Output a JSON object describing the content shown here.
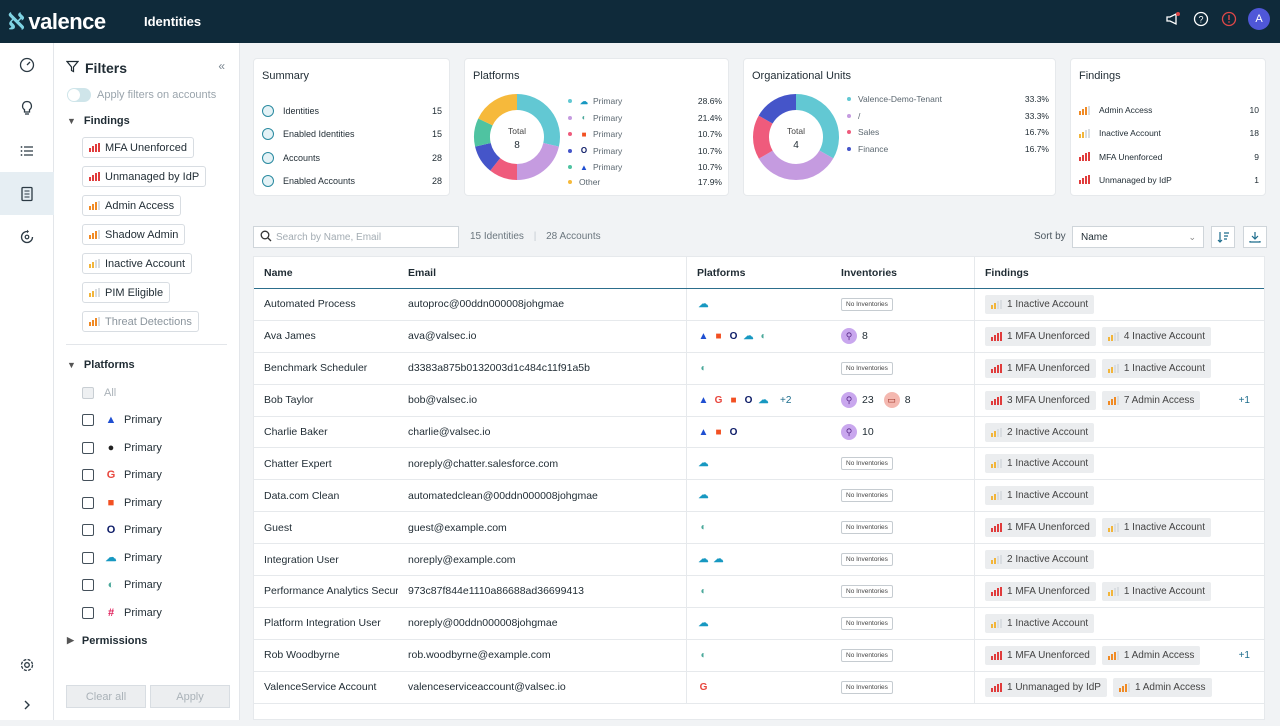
{
  "app": {
    "brand": "valence",
    "page_title": "Identities",
    "user_initial": "A"
  },
  "top_icons": [
    "megaphone-icon",
    "help-icon",
    "alert-icon"
  ],
  "rail": [
    "dashboard-icon",
    "lightbulb-icon",
    "list-icon",
    "identities-icon",
    "sync-icon",
    "settings-icon",
    "expand-icon"
  ],
  "filters": {
    "title": "Filters",
    "apply_toggle": "Apply filters on accounts",
    "findings_title": "Findings",
    "findings": [
      {
        "label": "MFA Unenforced",
        "color": "#e03b3b",
        "level": 4
      },
      {
        "label": "Unmanaged by IdP",
        "color": "#e03b3b",
        "level": 4
      },
      {
        "label": "Admin Access",
        "color": "#f08a24",
        "level": 3
      },
      {
        "label": "Shadow Admin",
        "color": "#f08a24",
        "level": 3
      },
      {
        "label": "Inactive Account",
        "color": "#f2b53a",
        "level": 2
      },
      {
        "label": "PIM Eligible",
        "color": "#f2b53a",
        "level": 2
      },
      {
        "label": "Threat Detections",
        "color": "#f08a24",
        "level": 3
      }
    ],
    "platforms_title": "Platforms",
    "all_label": "All",
    "platforms": [
      {
        "label": "Primary",
        "icon": "atlassian-icon",
        "glyph": "▲",
        "color": "#1f4fd1"
      },
      {
        "label": "Primary",
        "icon": "github-icon",
        "glyph": "●",
        "color": "#222"
      },
      {
        "label": "Primary",
        "icon": "google-icon",
        "glyph": "G",
        "color": "#e8453c"
      },
      {
        "label": "Primary",
        "icon": "microsoft-icon",
        "glyph": "■",
        "color": "#f25022"
      },
      {
        "label": "Primary",
        "icon": "okta-icon",
        "glyph": "O",
        "color": "#0b1a66"
      },
      {
        "label": "Primary",
        "icon": "salesforce-icon",
        "glyph": "☁",
        "color": "#1798c1"
      },
      {
        "label": "Primary",
        "icon": "onelogin-icon",
        "glyph": "◐",
        "color": "#4aa89a"
      },
      {
        "label": "Primary",
        "icon": "slack-icon",
        "glyph": "#",
        "color": "#e01e5a"
      }
    ],
    "permissions_title": "Permissions",
    "clear_label": "Clear all",
    "apply_label": "Apply"
  },
  "summary": {
    "title": "Summary",
    "rows": [
      {
        "label": "Identities",
        "value": "15"
      },
      {
        "label": "Enabled Identities",
        "value": "15"
      },
      {
        "label": "Accounts",
        "value": "28"
      },
      {
        "label": "Enabled Accounts",
        "value": "28"
      }
    ]
  },
  "platforms_card": {
    "title": "Platforms",
    "total_label": "Total",
    "total": "8",
    "legend": [
      {
        "label": "Primary",
        "pct": "28.6%",
        "value": 28.6,
        "color": "#62c8d3"
      },
      {
        "label": "Primary",
        "pct": "21.4%",
        "value": 21.4,
        "color": "#c59be0"
      },
      {
        "label": "Primary",
        "pct": "10.7%",
        "value": 10.7,
        "color": "#ef5b7c"
      },
      {
        "label": "Primary",
        "pct": "10.7%",
        "value": 10.7,
        "color": "#4555c9"
      },
      {
        "label": "Primary",
        "pct": "10.7%",
        "value": 10.7,
        "color": "#4fc3a1"
      },
      {
        "label": "Other",
        "pct": "17.9%",
        "value": 17.9,
        "color": "#f6b93b"
      }
    ]
  },
  "org_units": {
    "title": "Organizational Units",
    "total_label": "Total",
    "total": "4",
    "legend": [
      {
        "label": "Valence-Demo-Tenant",
        "pct": "33.3%",
        "value": 33.3,
        "color": "#62c8d3"
      },
      {
        "label": "/",
        "pct": "33.3%",
        "value": 33.3,
        "color": "#c59be0"
      },
      {
        "label": "Sales",
        "pct": "16.7%",
        "value": 16.7,
        "color": "#ef5b7c"
      },
      {
        "label": "Finance",
        "pct": "16.7%",
        "value": 16.7,
        "color": "#4555c9"
      }
    ]
  },
  "findings_card": {
    "title": "Findings",
    "rows": [
      {
        "label": "Admin Access",
        "value": "10",
        "color": "#f08a24",
        "level": 3
      },
      {
        "label": "Inactive Account",
        "value": "18",
        "color": "#f2b53a",
        "level": 2
      },
      {
        "label": "MFA Unenforced",
        "value": "9",
        "color": "#e03b3b",
        "level": 4
      },
      {
        "label": "Unmanaged by IdP",
        "value": "1",
        "color": "#e03b3b",
        "level": 4
      }
    ]
  },
  "toolbar": {
    "search_placeholder": "Search by Name, Email",
    "identities_count": "15 Identities",
    "accounts_count": "28 Accounts",
    "sort_label": "Sort by",
    "sort_value": "Name"
  },
  "table": {
    "headers": [
      "Name",
      "Email",
      "Platforms",
      "Inventories",
      "Findings"
    ],
    "no_inventories": "No Inventories",
    "rows": [
      {
        "name": "Automated Process",
        "email": "autoproc@00ddn000008johgmae",
        "platforms": [
          "salesforce"
        ],
        "more": "",
        "inv": [],
        "findings": [
          {
            "label": "1 Inactive Account",
            "color": "#f2b53a",
            "level": 2
          }
        ],
        "plus": ""
      },
      {
        "name": "Ava James",
        "email": "ava@valsec.io",
        "platforms": [
          "atlassian",
          "microsoft",
          "okta",
          "salesforce",
          "onelogin"
        ],
        "more": "",
        "inv": [
          {
            "kind": "link",
            "count": "8"
          }
        ],
        "findings": [
          {
            "label": "1 MFA Unenforced",
            "color": "#e03b3b",
            "level": 4
          },
          {
            "label": "4 Inactive Account",
            "color": "#f2b53a",
            "level": 2
          }
        ],
        "plus": ""
      },
      {
        "name": "Benchmark Scheduler",
        "email": "d3383a875b0132003d1c484c11f91a5b",
        "platforms": [
          "onelogin"
        ],
        "more": "",
        "inv": [],
        "findings": [
          {
            "label": "1 MFA Unenforced",
            "color": "#e03b3b",
            "level": 4
          },
          {
            "label": "1 Inactive Account",
            "color": "#f2b53a",
            "level": 2
          }
        ],
        "plus": ""
      },
      {
        "name": "Bob Taylor",
        "email": "bob@valsec.io",
        "platforms": [
          "atlassian",
          "google",
          "microsoft",
          "okta",
          "salesforce"
        ],
        "more": "+2",
        "inv": [
          {
            "kind": "link",
            "count": "23"
          },
          {
            "kind": "folder",
            "count": "8"
          }
        ],
        "findings": [
          {
            "label": "3 MFA Unenforced",
            "color": "#e03b3b",
            "level": 4
          },
          {
            "label": "7 Admin Access",
            "color": "#f08a24",
            "level": 3
          }
        ],
        "plus": "+1"
      },
      {
        "name": "Charlie Baker",
        "email": "charlie@valsec.io",
        "platforms": [
          "atlassian",
          "microsoft",
          "okta"
        ],
        "more": "",
        "inv": [
          {
            "kind": "link",
            "count": "10"
          }
        ],
        "findings": [
          {
            "label": "2 Inactive Account",
            "color": "#f2b53a",
            "level": 2
          }
        ],
        "plus": ""
      },
      {
        "name": "Chatter Expert",
        "email": "noreply@chatter.salesforce.com",
        "platforms": [
          "salesforce"
        ],
        "more": "",
        "inv": [],
        "findings": [
          {
            "label": "1 Inactive Account",
            "color": "#f2b53a",
            "level": 2
          }
        ],
        "plus": ""
      },
      {
        "name": "Data.com Clean",
        "email": "automatedclean@00ddn000008johgmae",
        "platforms": [
          "salesforce"
        ],
        "more": "",
        "inv": [],
        "findings": [
          {
            "label": "1 Inactive Account",
            "color": "#f2b53a",
            "level": 2
          }
        ],
        "plus": ""
      },
      {
        "name": "Guest",
        "email": "guest@example.com",
        "platforms": [
          "onelogin"
        ],
        "more": "",
        "inv": [],
        "findings": [
          {
            "label": "1 MFA Unenforced",
            "color": "#e03b3b",
            "level": 4
          },
          {
            "label": "1 Inactive Account",
            "color": "#f2b53a",
            "level": 2
          }
        ],
        "plus": ""
      },
      {
        "name": "Integration User",
        "email": "noreply@example.com",
        "platforms": [
          "salesforce",
          "salesforce"
        ],
        "more": "",
        "inv": [],
        "findings": [
          {
            "label": "2 Inactive Account",
            "color": "#f2b53a",
            "level": 2
          }
        ],
        "plus": ""
      },
      {
        "name": "Performance Analytics Secur",
        "email": "973c87f844e1110a86688ad36699413",
        "platforms": [
          "onelogin"
        ],
        "more": "",
        "inv": [],
        "findings": [
          {
            "label": "1 MFA Unenforced",
            "color": "#e03b3b",
            "level": 4
          },
          {
            "label": "1 Inactive Account",
            "color": "#f2b53a",
            "level": 2
          }
        ],
        "plus": ""
      },
      {
        "name": "Platform Integration User",
        "email": "noreply@00ddn000008johgmae",
        "platforms": [
          "salesforce"
        ],
        "more": "",
        "inv": [],
        "findings": [
          {
            "label": "1 Inactive Account",
            "color": "#f2b53a",
            "level": 2
          }
        ],
        "plus": ""
      },
      {
        "name": "Rob Woodbyrne",
        "email": "rob.woodbyrne@example.com",
        "platforms": [
          "onelogin"
        ],
        "more": "",
        "inv": [],
        "findings": [
          {
            "label": "1 MFA Unenforced",
            "color": "#e03b3b",
            "level": 4
          },
          {
            "label": "1 Admin Access",
            "color": "#f08a24",
            "level": 3
          }
        ],
        "plus": "+1"
      },
      {
        "name": "ValenceService Account",
        "email": "valenceserviceaccount@valsec.io",
        "platforms": [
          "google"
        ],
        "more": "",
        "inv": [],
        "findings": [
          {
            "label": "1 Unmanaged by IdP",
            "color": "#e03b3b",
            "level": 4
          },
          {
            "label": "1 Admin Access",
            "color": "#f08a24",
            "level": 3
          }
        ],
        "plus": ""
      }
    ]
  }
}
